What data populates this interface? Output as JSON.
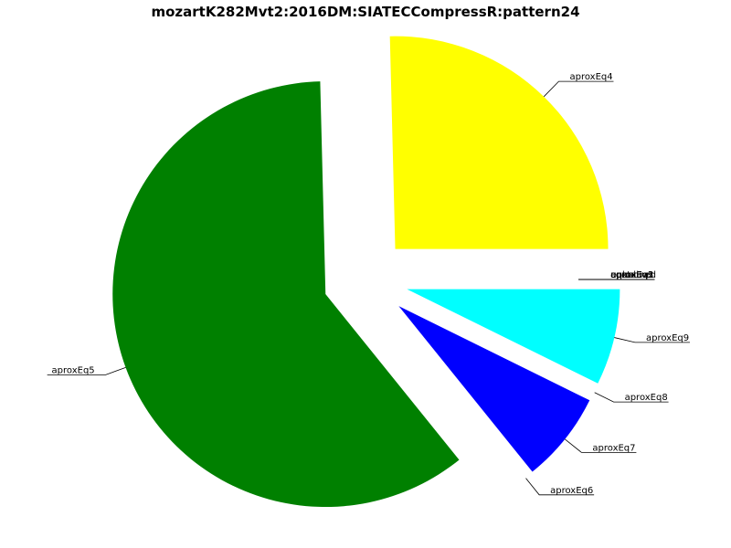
{
  "chart_data": {
    "type": "pie",
    "title": "mozartK282Mvt2:2016DM:SIATECCompressR:pattern24",
    "slices": [
      {
        "label": "aproxEq4",
        "value": 25.4,
        "color": "#ffff00",
        "exploded": true
      },
      {
        "label": "aproxEq5",
        "value": 60.4,
        "color": "#008000",
        "exploded": true
      },
      {
        "label": "aproxEq6",
        "value": 0.0,
        "color": "#ff0000",
        "exploded": true
      },
      {
        "label": "aproxEq7",
        "value": 6.9,
        "color": "#0000ff",
        "exploded": true
      },
      {
        "label": "aproxEq8",
        "value": 0.0,
        "color": "#ff00ff",
        "exploded": true
      },
      {
        "label": "aproxEq9",
        "value": 7.3,
        "color": "#00ffff",
        "exploded": true
      },
      {
        "label": "unknown",
        "value": 0.0,
        "color": "#ffffff",
        "exploded": false
      },
      {
        "label": "equal",
        "value": 0.0,
        "color": "#ffffff",
        "exploded": false
      },
      {
        "label": "aproxEq1",
        "value": 0.0,
        "color": "#ffffff",
        "exploded": false
      },
      {
        "label": "aproxEq2",
        "value": 0.0,
        "color": "#ffffff",
        "exploded": false
      },
      {
        "label": "aproxEq3",
        "value": 0.0,
        "color": "#ffffff",
        "exploded": false
      },
      {
        "label": "contained",
        "value": 0.0,
        "color": "#ffffff",
        "exploded": false
      }
    ]
  }
}
